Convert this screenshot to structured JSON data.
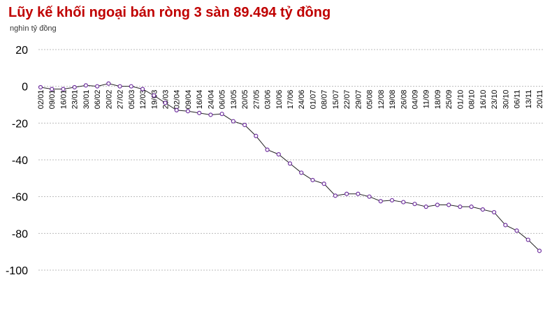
{
  "chart_data": {
    "type": "line",
    "title": "Lũy kế khối ngoại bán ròng 3 sàn 89.494 tỷ đồng",
    "y_label": "nghìn tỷ đồng",
    "categories": [
      "02/01",
      "09/01",
      "16/01",
      "23/01",
      "30/01",
      "06/02",
      "20/02",
      "27/02",
      "05/03",
      "12/03",
      "19/03",
      "26/03",
      "02/04",
      "09/04",
      "16/04",
      "24/04",
      "06/05",
      "13/05",
      "20/05",
      "27/05",
      "03/06",
      "10/06",
      "17/06",
      "24/06",
      "01/07",
      "08/07",
      "15/07",
      "22/07",
      "29/07",
      "05/08",
      "12/08",
      "19/08",
      "26/08",
      "04/09",
      "11/09",
      "18/09",
      "25/09",
      "01/10",
      "08/10",
      "16/10",
      "23/10",
      "30/10",
      "06/11",
      "13/11",
      "20/11"
    ],
    "series": [
      {
        "name": "Lũy kế",
        "color": "#7030a0",
        "values": [
          -0.5,
          -1.5,
          -1.5,
          -0.5,
          0.5,
          0,
          1.5,
          0,
          0,
          -1.5,
          -5,
          -9,
          -13,
          -13.5,
          -14.5,
          -15.5,
          -15,
          -19,
          -21,
          -27,
          -34.5,
          -37,
          -42,
          -47,
          -51,
          -53,
          -59.5,
          -58.5,
          -58.5,
          -60,
          -62.5,
          -62,
          -63,
          -64,
          -65.5,
          -64.5,
          -64.5,
          -65.5,
          -65.5,
          -67,
          -68.5,
          -75.5,
          -78.5,
          -83.5,
          -89.5
        ]
      }
    ],
    "ylim": [
      -100,
      20
    ],
    "yticks": [
      -100,
      -80,
      -60,
      -40,
      -20,
      0,
      20
    ],
    "grid": true
  }
}
